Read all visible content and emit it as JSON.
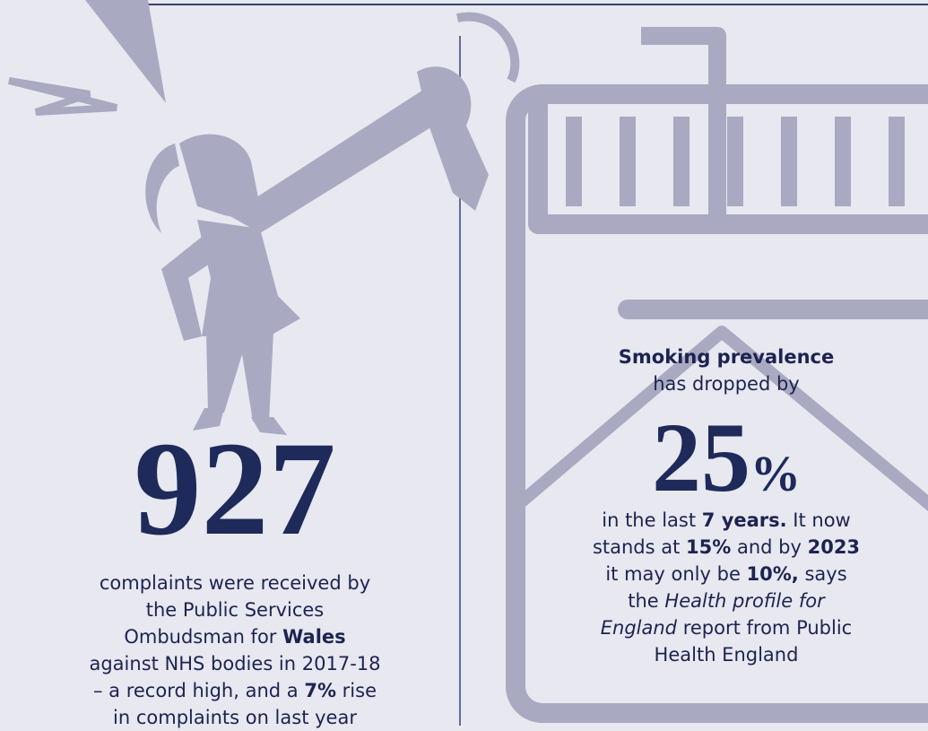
{
  "left": {
    "number": "927",
    "text": [
      "complaints were received by the Public Services Ombudsman for ",
      "Wales",
      " against NHS bodies in 2017-18 – a record high, and a ",
      "7%",
      " rise in complaints on last year"
    ]
  },
  "right": {
    "heading": "Smoking prevalence",
    "intro": "has dropped by",
    "number": "25",
    "unit": "%",
    "text": [
      "in the last ",
      "7 years.",
      " It now stands at ",
      "15%",
      " and by ",
      "2023",
      " it may only be ",
      "10%,",
      " says the ",
      "Health profile for England",
      " report from Public Health England"
    ]
  }
}
